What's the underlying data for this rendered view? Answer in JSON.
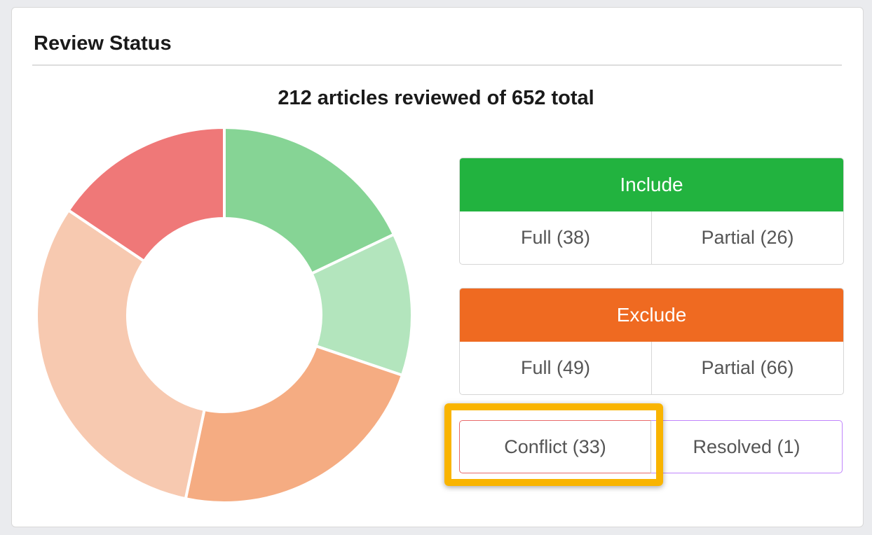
{
  "card": {
    "title": "Review Status"
  },
  "summary": "212 articles reviewed of 652 total",
  "include": {
    "label": "Include",
    "color": "#22b33f",
    "full": "Full (38)",
    "partial": "Partial (26)"
  },
  "exclude": {
    "label": "Exclude",
    "color": "#ef6a21",
    "full": "Full (49)",
    "partial": "Partial (66)"
  },
  "conflict": {
    "label": "Conflict (33)",
    "color": "#e86a6a"
  },
  "resolved": {
    "label": "Resolved (1)",
    "color": "#c084fc"
  },
  "chart_data": {
    "type": "pie",
    "donut": true,
    "categories": [
      "Include Full",
      "Include Partial",
      "Exclude Full",
      "Exclude Partial",
      "Conflict"
    ],
    "values": [
      38,
      26,
      49,
      66,
      33
    ],
    "colors": [
      "#86d495",
      "#b3e5bd",
      "#f5ac82",
      "#f7c9b0",
      "#ef7878"
    ]
  }
}
